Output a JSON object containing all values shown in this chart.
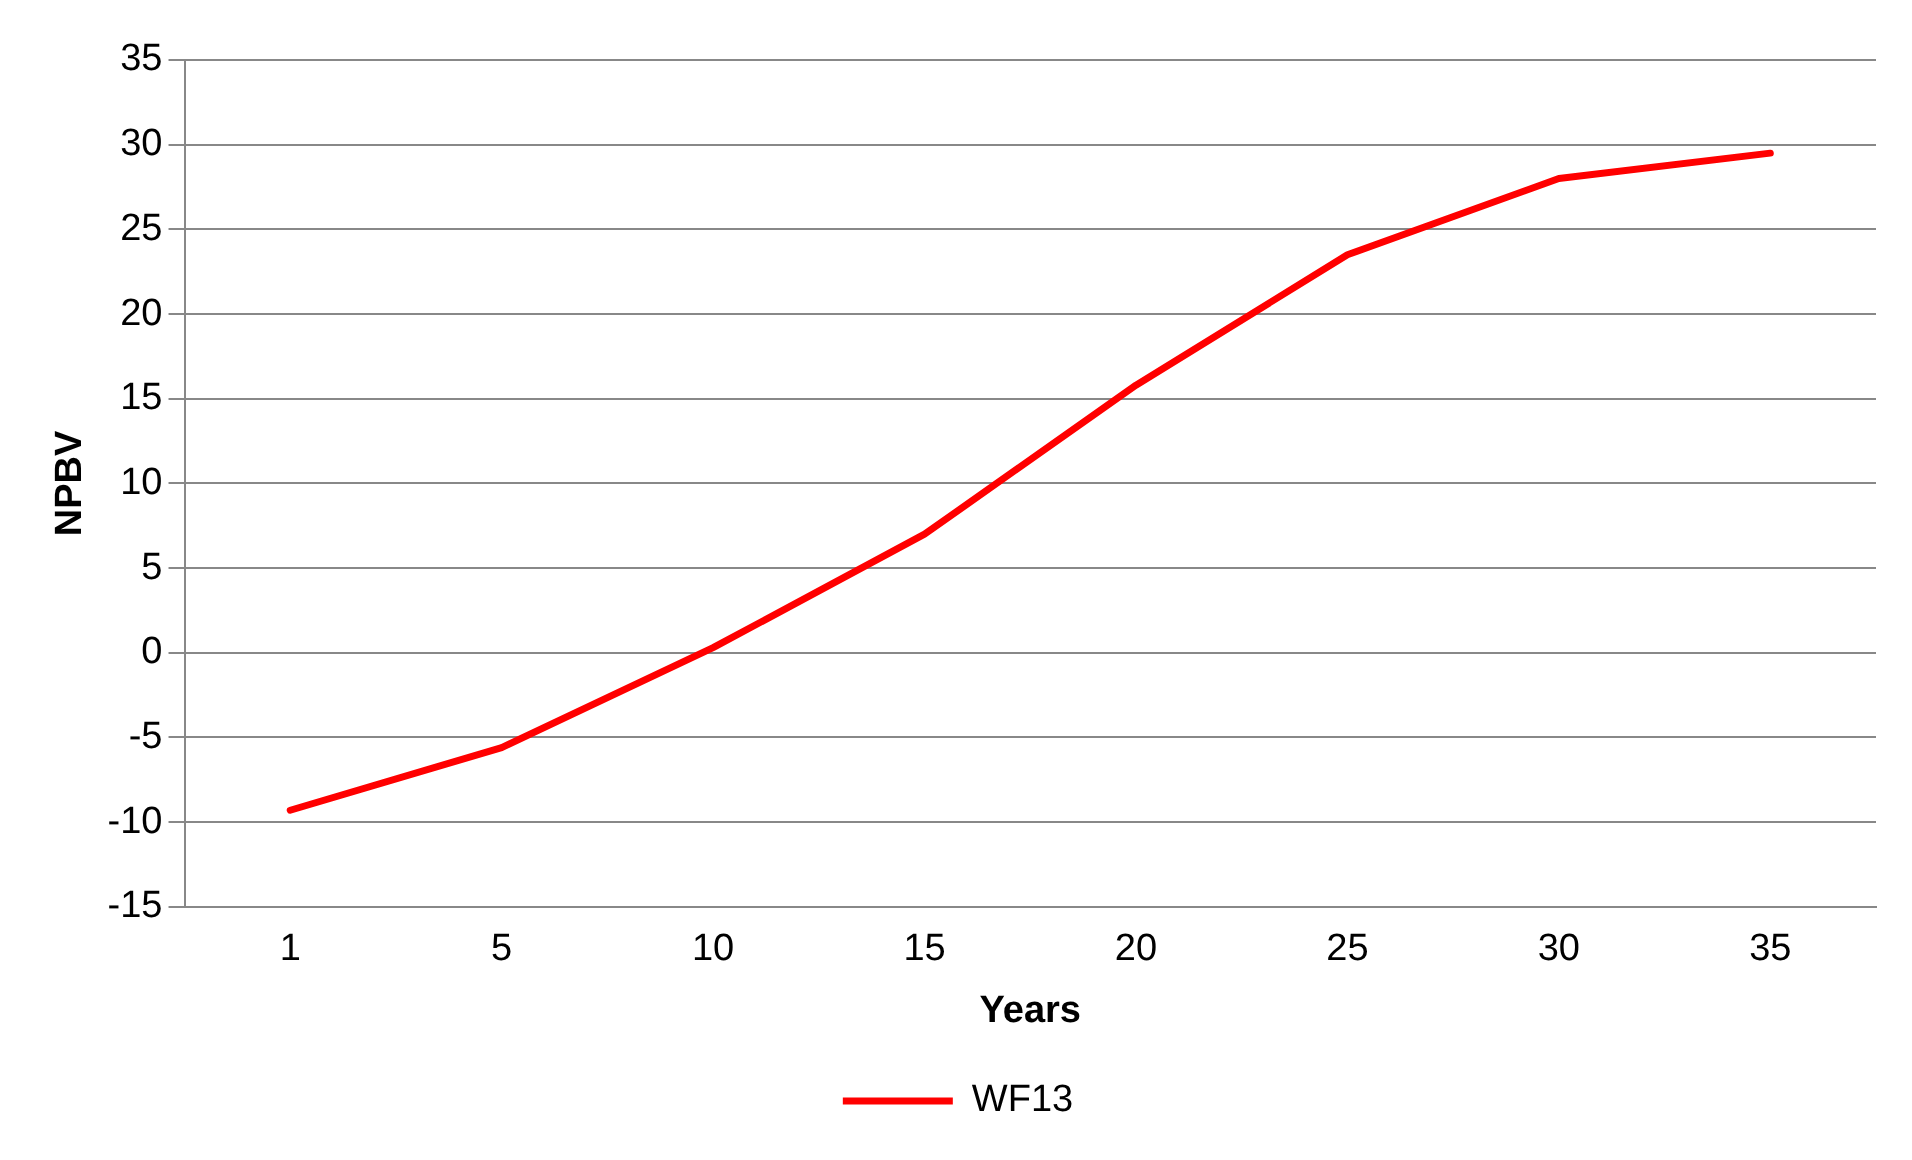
{
  "chart_data": {
    "type": "line",
    "xlabel": "Years",
    "ylabel": "NPBV",
    "categories": [
      "1",
      "5",
      "10",
      "15",
      "20",
      "25",
      "30",
      "35"
    ],
    "series": [
      {
        "name": "WF13",
        "color": "#ff0000",
        "values": [
          -9.3,
          -5.6,
          0.3,
          7,
          15.8,
          23.5,
          28,
          29.5
        ]
      }
    ],
    "ylim": [
      -15,
      35
    ],
    "yticks": [
      -15,
      -10,
      -5,
      0,
      5,
      10,
      15,
      20,
      25,
      30,
      35
    ],
    "grid": "y",
    "legend": "bottom",
    "marker": "none",
    "line_style": "solid"
  }
}
